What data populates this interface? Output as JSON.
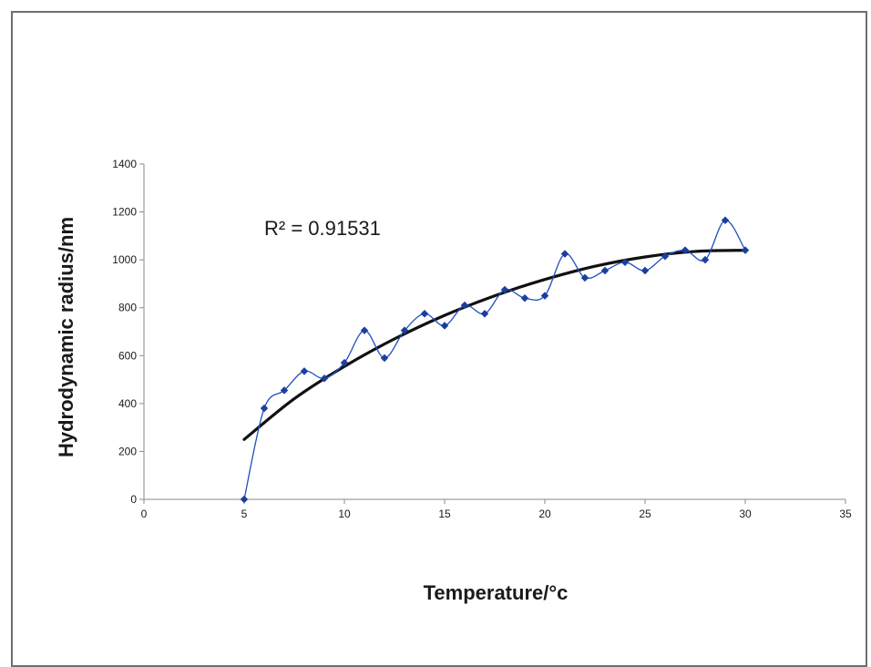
{
  "chart_data": {
    "type": "scatter",
    "xlabel": "Temperature/°c",
    "ylabel": "Hydrodynamic radius/nm",
    "xlim": [
      0,
      35
    ],
    "ylim": [
      0,
      1400
    ],
    "xticks": [
      0,
      5,
      10,
      15,
      20,
      25,
      30,
      35
    ],
    "yticks": [
      0,
      200,
      400,
      600,
      800,
      1000,
      1200,
      1400
    ],
    "grid": false,
    "legend": "none",
    "annotation": "R² = 0.91531",
    "series": [
      {
        "style": "smoothed line with diamond markers",
        "color": "#1f4fbf",
        "x": [
          5,
          6,
          7,
          8,
          9,
          10,
          11,
          12,
          13,
          14,
          15,
          16,
          17,
          18,
          19,
          20,
          21,
          22,
          23,
          24,
          25,
          26,
          27,
          28,
          29,
          30
        ],
        "y": [
          0,
          380,
          455,
          535,
          505,
          570,
          705,
          590,
          705,
          775,
          725,
          810,
          775,
          875,
          840,
          850,
          1025,
          925,
          955,
          990,
          955,
          1015,
          1040,
          1000,
          1165,
          1040
        ]
      },
      {
        "style": "polynomial trendline",
        "color": "#111111",
        "x": [
          5,
          7.5,
          10,
          12.5,
          15,
          17.5,
          20,
          22.5,
          25,
          27.5,
          30
        ],
        "y": [
          250,
          420,
          555,
          670,
          768,
          850,
          918,
          973,
          1012,
          1035,
          1040
        ]
      }
    ]
  }
}
